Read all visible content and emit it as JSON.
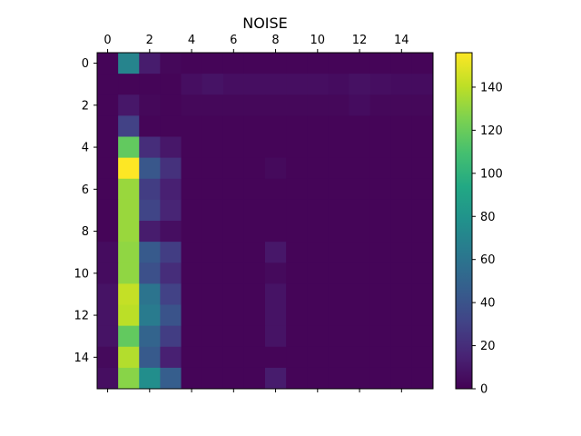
{
  "chart_data": {
    "type": "heatmap",
    "title": "NOISE",
    "colormap": "viridis",
    "x_ticks": [
      "0",
      "2",
      "4",
      "6",
      "8",
      "10",
      "12",
      "14"
    ],
    "y_ticks": [
      "0",
      "2",
      "4",
      "6",
      "8",
      "10",
      "12",
      "14"
    ],
    "colorbar_ticks": [
      "0",
      "20",
      "40",
      "60",
      "80",
      "100",
      "120",
      "140"
    ],
    "vmin": 0,
    "vmax": 156,
    "grid": false,
    "matrix": [
      [
        2,
        70,
        12,
        3,
        2,
        2,
        2,
        2,
        2,
        2,
        2,
        2,
        2,
        2,
        2,
        2
      ],
      [
        2,
        2,
        2,
        2,
        6,
        8,
        6,
        6,
        6,
        6,
        6,
        5,
        7,
        6,
        5,
        5
      ],
      [
        2,
        10,
        3,
        2,
        3,
        3,
        3,
        3,
        3,
        3,
        3,
        3,
        5,
        3,
        3,
        3
      ],
      [
        2,
        30,
        2,
        2,
        2,
        2,
        2,
        2,
        2,
        2,
        2,
        2,
        2,
        2,
        2,
        2
      ],
      [
        2,
        118,
        20,
        10,
        2,
        2,
        2,
        2,
        2,
        2,
        2,
        2,
        2,
        2,
        2,
        2
      ],
      [
        2,
        156,
        42,
        22,
        2,
        2,
        2,
        2,
        4,
        2,
        2,
        2,
        2,
        2,
        2,
        2
      ],
      [
        2,
        132,
        28,
        14,
        2,
        2,
        2,
        2,
        2,
        2,
        2,
        2,
        2,
        2,
        2,
        2
      ],
      [
        2,
        132,
        32,
        16,
        2,
        2,
        2,
        2,
        2,
        2,
        2,
        2,
        2,
        2,
        2,
        2
      ],
      [
        2,
        132,
        12,
        6,
        2,
        2,
        2,
        2,
        2,
        2,
        2,
        2,
        2,
        2,
        2,
        2
      ],
      [
        5,
        130,
        44,
        28,
        2,
        2,
        2,
        2,
        10,
        2,
        2,
        2,
        2,
        2,
        2,
        2
      ],
      [
        5,
        130,
        38,
        20,
        2,
        2,
        2,
        2,
        4,
        2,
        2,
        2,
        2,
        2,
        2,
        2
      ],
      [
        8,
        142,
        60,
        30,
        2,
        2,
        2,
        2,
        8,
        2,
        2,
        2,
        2,
        2,
        2,
        2
      ],
      [
        8,
        140,
        64,
        40,
        2,
        2,
        2,
        2,
        8,
        2,
        2,
        2,
        2,
        2,
        2,
        2
      ],
      [
        8,
        118,
        50,
        28,
        2,
        2,
        2,
        2,
        8,
        2,
        2,
        2,
        2,
        2,
        2,
        2
      ],
      [
        4,
        138,
        44,
        14,
        2,
        2,
        2,
        2,
        2,
        2,
        2,
        2,
        2,
        2,
        2,
        2
      ],
      [
        6,
        128,
        76,
        46,
        2,
        2,
        2,
        2,
        12,
        2,
        2,
        2,
        2,
        2,
        2,
        2
      ]
    ]
  }
}
